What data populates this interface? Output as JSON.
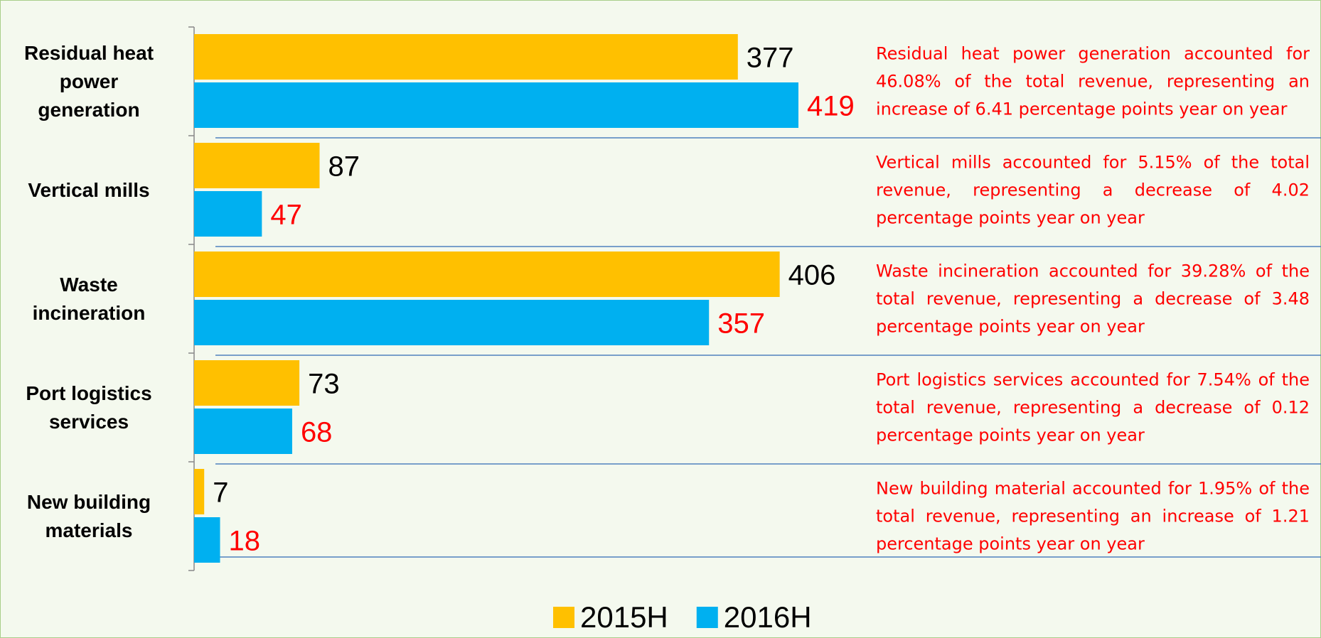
{
  "chart_data": {
    "type": "barh",
    "categories": [
      "Residual heat power generation",
      "Vertical mills",
      "Waste incineration",
      "Port logistics services",
      "New building materials"
    ],
    "series": [
      {
        "name": "2015H",
        "color": "#FFC000",
        "label_color": "#000000",
        "values": [
          377,
          87,
          406,
          73,
          7
        ]
      },
      {
        "name": "2016H",
        "color": "#00B0F0",
        "label_color": "#FF0000",
        "values": [
          419,
          47,
          357,
          68,
          18
        ]
      }
    ],
    "annotations": [
      "Residual heat power generation accounted for 46.08% of the total revenue, representing an increase of 6.41 percentage points year on year",
      "Vertical mills accounted for 5.15% of the total revenue, representing a decrease of 4.02 percentage points year on year",
      "Waste incineration accounted for 39.28% of the total revenue, representing a decrease of 3.48 percentage points year on year",
      "Port logistics services accounted for 7.54% of the total revenue, representing a decrease of 0.12 percentage points year on year",
      "New building material accounted for 1.95% of the total revenue, representing an increase of 1.21 percentage points year on year"
    ],
    "annotation_color": "#FF0000",
    "legend": "bottom"
  }
}
